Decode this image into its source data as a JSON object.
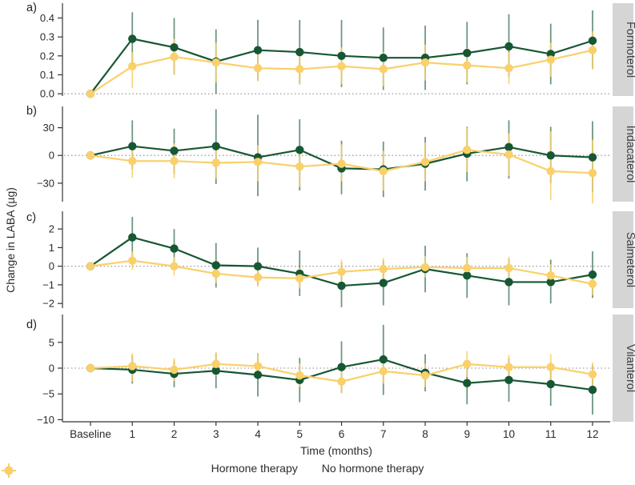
{
  "figure": {
    "ylabel": "Change in LABA (µg)",
    "xlabel": "Time (months)",
    "panel_letters": [
      "a)",
      "b)",
      "c)",
      "d)"
    ],
    "x_tick_labels": [
      "Baseline",
      "1",
      "2",
      "3",
      "4",
      "5",
      "6",
      "7",
      "8",
      "9",
      "10",
      "11",
      "12"
    ],
    "legend": [
      {
        "label": "Hormone therapy",
        "color": "#175733",
        "symbol": "pointrange"
      },
      {
        "label": "No hormone therapy",
        "color": "#F9D06A",
        "symbol": "pointrange"
      }
    ],
    "colors": {
      "axis": "#333333",
      "zero_line": "#8a8a8a",
      "strip_bg": "#d5d5d5",
      "strip_text": "#3f3f3f",
      "hormone_green": "#175733",
      "no_hormone_yellow": "#F9D06A"
    }
  },
  "chart_data": [
    {
      "type": "line",
      "panel": "a",
      "facet_label": "Formoterol",
      "categories": [
        "Baseline",
        "1",
        "2",
        "3",
        "4",
        "5",
        "6",
        "7",
        "8",
        "9",
        "10",
        "11",
        "12"
      ],
      "ylim": [
        -0.012,
        0.478
      ],
      "ytick_values": [
        0.0,
        0.1,
        0.2,
        0.3,
        0.4
      ],
      "ytick_labels": [
        "0.0",
        "0.1",
        "0.2",
        "0.3",
        "0.4"
      ],
      "zero_line": true,
      "series": [
        {
          "name": "Hormone therapy",
          "color": "#175733",
          "values": [
            0,
            0.29,
            0.245,
            0.17,
            0.23,
            0.22,
            0.2,
            0.19,
            0.19,
            0.215,
            0.25,
            0.21,
            0.28
          ],
          "lo": [
            0,
            0.15,
            0.1,
            0.0,
            0.07,
            0.05,
            0.035,
            0.02,
            0.02,
            0.05,
            0.09,
            0.05,
            0.13
          ],
          "hi": [
            0,
            0.43,
            0.4,
            0.34,
            0.39,
            0.39,
            0.39,
            0.35,
            0.36,
            0.38,
            0.42,
            0.37,
            0.44
          ]
        },
        {
          "name": "No hormone therapy",
          "color": "#F9D06A",
          "values": [
            0,
            0.145,
            0.195,
            0.165,
            0.135,
            0.13,
            0.145,
            0.13,
            0.165,
            0.15,
            0.135,
            0.18,
            0.23
          ],
          "lo": [
            0,
            0.03,
            0.1,
            0.06,
            0.065,
            0.05,
            0.05,
            0.04,
            0.07,
            0.06,
            0.05,
            0.09,
            0.13
          ],
          "hi": [
            0,
            0.22,
            0.29,
            0.27,
            0.21,
            0.21,
            0.245,
            0.22,
            0.26,
            0.24,
            0.22,
            0.27,
            0.33
          ]
        }
      ]
    },
    {
      "type": "line",
      "panel": "b",
      "facet_label": "Indacaterol",
      "categories": [
        "Baseline",
        "1",
        "2",
        "3",
        "4",
        "5",
        "6",
        "7",
        "8",
        "9",
        "10",
        "11",
        "12"
      ],
      "ylim": [
        -50,
        53
      ],
      "ytick_values": [
        -30,
        0,
        30
      ],
      "ytick_labels": [
        "−30",
        "0",
        "30"
      ],
      "zero_line": true,
      "series": [
        {
          "name": "Hormone therapy",
          "color": "#175733",
          "values": [
            0,
            10,
            5,
            10,
            -2,
            6,
            -14,
            -15,
            -9,
            2,
            9,
            0,
            -2
          ],
          "lo": [
            0,
            -15,
            -20,
            -31,
            -44,
            -38,
            -42,
            -45,
            -38,
            -28,
            -25,
            -30,
            -40
          ],
          "hi": [
            0,
            38,
            29,
            50,
            44,
            39,
            16,
            15,
            20,
            31,
            38,
            31,
            37
          ]
        },
        {
          "name": "No hormone therapy",
          "color": "#F9D06A",
          "values": [
            0,
            -6,
            -6,
            -8,
            -7,
            -12,
            -9,
            -17,
            -7,
            6,
            1,
            -17,
            -19
          ],
          "lo": [
            0,
            -24,
            -25,
            -25,
            -28,
            -34,
            -28,
            -38,
            -28,
            -18,
            -22,
            -48,
            -52
          ],
          "hi": [
            0,
            12,
            13,
            11,
            11,
            8,
            12,
            5,
            14,
            30,
            24,
            26,
            17
          ]
        }
      ]
    },
    {
      "type": "line",
      "panel": "c",
      "facet_label": "Salmeterol",
      "categories": [
        "Baseline",
        "1",
        "2",
        "3",
        "4",
        "5",
        "6",
        "7",
        "8",
        "9",
        "10",
        "11",
        "12"
      ],
      "ylim": [
        -2.25,
        2.95
      ],
      "ytick_values": [
        -2,
        -1,
        0,
        1,
        2
      ],
      "ytick_labels": [
        "−2",
        "−1",
        "0",
        "1",
        "2"
      ],
      "zero_line": true,
      "series": [
        {
          "name": "Hormone therapy",
          "color": "#175733",
          "values": [
            0,
            1.55,
            0.95,
            0.05,
            0.0,
            -0.4,
            -1.05,
            -0.9,
            -0.15,
            -0.5,
            -0.85,
            -0.85,
            -0.45
          ],
          "lo": [
            0,
            0.45,
            -0.1,
            -1.15,
            -1.0,
            -1.6,
            -2.2,
            -2.1,
            -1.4,
            -1.7,
            -2.1,
            -2.0,
            -1.7
          ],
          "hi": [
            0,
            2.65,
            2.0,
            1.25,
            1.0,
            0.85,
            0.2,
            0.3,
            1.1,
            0.7,
            0.4,
            0.35,
            0.8
          ]
        },
        {
          "name": "No hormone therapy",
          "color": "#F9D06A",
          "values": [
            0,
            0.3,
            0.0,
            -0.4,
            -0.6,
            -0.65,
            -0.3,
            -0.15,
            -0.05,
            -0.1,
            -0.1,
            -0.5,
            -0.95
          ],
          "lo": [
            0,
            -0.2,
            -0.5,
            -0.9,
            -1.1,
            -1.2,
            -0.9,
            -0.7,
            -0.6,
            -0.65,
            -0.7,
            -1.1,
            -1.55
          ],
          "hi": [
            0,
            0.8,
            0.5,
            0.1,
            -0.1,
            -0.1,
            0.35,
            0.45,
            0.55,
            0.5,
            0.5,
            0.1,
            -0.3
          ]
        }
      ]
    },
    {
      "type": "line",
      "panel": "d",
      "facet_label": "Vilanterol",
      "categories": [
        "Baseline",
        "1",
        "2",
        "3",
        "4",
        "5",
        "6",
        "7",
        "8",
        "9",
        "10",
        "11",
        "12"
      ],
      "ylim": [
        -10.4,
        10.4
      ],
      "ytick_values": [
        -10,
        -5,
        0,
        5
      ],
      "ytick_labels": [
        "−10",
        "−5",
        "0",
        "5"
      ],
      "zero_line": true,
      "series": [
        {
          "name": "Hormone therapy",
          "color": "#175733",
          "values": [
            0,
            -0.3,
            -1.1,
            -0.5,
            -1.3,
            -2.3,
            0.2,
            1.7,
            -0.9,
            -2.9,
            -2.3,
            -3.1,
            -4.2
          ],
          "lo": [
            0,
            -3.0,
            -3.7,
            -3.9,
            -5.5,
            -6.6,
            -4.8,
            -5.2,
            -4.5,
            -7.0,
            -6.5,
            -7.3,
            -9.0
          ],
          "hi": [
            0,
            2.5,
            1.5,
            2.9,
            2.9,
            2.0,
            5.2,
            8.4,
            2.7,
            1.2,
            1.9,
            1.1,
            0.6
          ]
        },
        {
          "name": "No hormone therapy",
          "color": "#F9D06A",
          "values": [
            0,
            0.4,
            -0.3,
            0.8,
            0.4,
            -1.4,
            -2.6,
            -0.6,
            -1.4,
            0.8,
            0.2,
            0.2,
            -1.2
          ],
          "lo": [
            0,
            -2.6,
            -2.5,
            -1.5,
            -2.0,
            -3.6,
            -4.9,
            -3.0,
            -3.7,
            -1.7,
            -2.2,
            -2.3,
            -3.5
          ],
          "hi": [
            0,
            2.9,
            2.0,
            3.1,
            2.9,
            0.9,
            -0.3,
            1.8,
            0.9,
            3.3,
            2.6,
            2.7,
            1.1
          ]
        }
      ]
    }
  ]
}
